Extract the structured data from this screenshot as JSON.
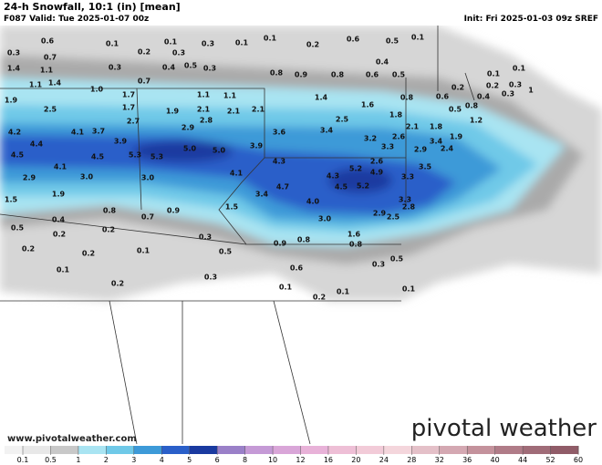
{
  "header": {
    "title": "24-h Snowfall, 10:1 (in) [mean]",
    "valid": "F087 Valid: Tue 2025-01-07 00z",
    "init": "Init: Fri 2025-01-03 09z SREF"
  },
  "map_labels": [
    "0.6",
    "0.1",
    "0.1",
    "0.3",
    "0.1",
    "0.1",
    "0.2",
    "0.6",
    "0.5",
    "0.1",
    "0.3",
    "0.7",
    "0.2",
    "0.3",
    "0.4",
    "1.4",
    "1.1",
    "0.3",
    "0.4",
    "0.5",
    "0.3",
    "0.8",
    "0.9",
    "0.8",
    "0.6",
    "0.5",
    "0.1",
    "0.1",
    "1.1",
    "1.4",
    "0.7",
    "1.0",
    "1.7",
    "0.2",
    "0.2",
    "0.3",
    "1.1",
    "1.1",
    "1.4",
    "0.8",
    "0.6",
    "0.4",
    "0.3",
    "1",
    "1.9",
    "2.5",
    "1.7",
    "1.9",
    "2.1",
    "2.1",
    "2.1",
    "1.6",
    "0.5",
    "0.8",
    "1.8",
    "2.7",
    "2.8",
    "2.5",
    "1.2",
    "1.8",
    "2.1",
    "4.2",
    "4.1",
    "3.7",
    "2.9",
    "3.6",
    "3.4",
    "3.2",
    "2.6",
    "1.9",
    "4.4",
    "3.9",
    "5.0",
    "5.0",
    "3.9",
    "3.3",
    "3.4",
    "2.9",
    "2.4",
    "4.5",
    "5.3",
    "4.5",
    "5.3",
    "4.3",
    "2.6",
    "3.5",
    "4.1",
    "5.2",
    "4.9",
    "4.1",
    "4.3",
    "3.3",
    "2.9",
    "3.0",
    "3.0",
    "5.2",
    "4.7",
    "4.5",
    "1.9",
    "3.4",
    "4.0",
    "3.3",
    "1.5",
    "2.8",
    "1.5",
    "0.8",
    "0.9",
    "2.9",
    "0.4",
    "0.7",
    "3.0",
    "2.5",
    "0.2",
    "0.5",
    "0.3",
    "1.6",
    "0.8",
    "0.9",
    "0.8",
    "0.2",
    "0.2",
    "0.2",
    "0.1",
    "0.5",
    "0.3",
    "0.5",
    "0.6",
    "0.1",
    "0.3",
    "0.2",
    "0.1",
    "0.1",
    "0.2",
    "0.1"
  ],
  "colorbar": {
    "ticks": [
      0.1,
      0.5,
      1,
      2,
      3,
      4,
      5,
      6,
      8,
      10,
      12,
      16,
      20,
      24,
      28,
      32,
      36,
      40,
      44,
      52,
      60
    ],
    "colors": [
      "#e8e8e8",
      "#c8c8c8",
      "#a9e4f2",
      "#6fc9e8",
      "#3d9ad8",
      "#2a5fc9",
      "#1a3aa0",
      "#9a80c8",
      "#c59ad6",
      "#d9a6d8",
      "#e8b2d8",
      "#eebfd6",
      "#f2cbd8",
      "#f4d6dc",
      "#e4c0c8",
      "#d4a8b2",
      "#c4929c",
      "#b07c88",
      "#a06c78",
      "#905c68"
    ]
  },
  "footer": {
    "website": "www.pivotalweather.com",
    "logo": "pivotal weather"
  }
}
